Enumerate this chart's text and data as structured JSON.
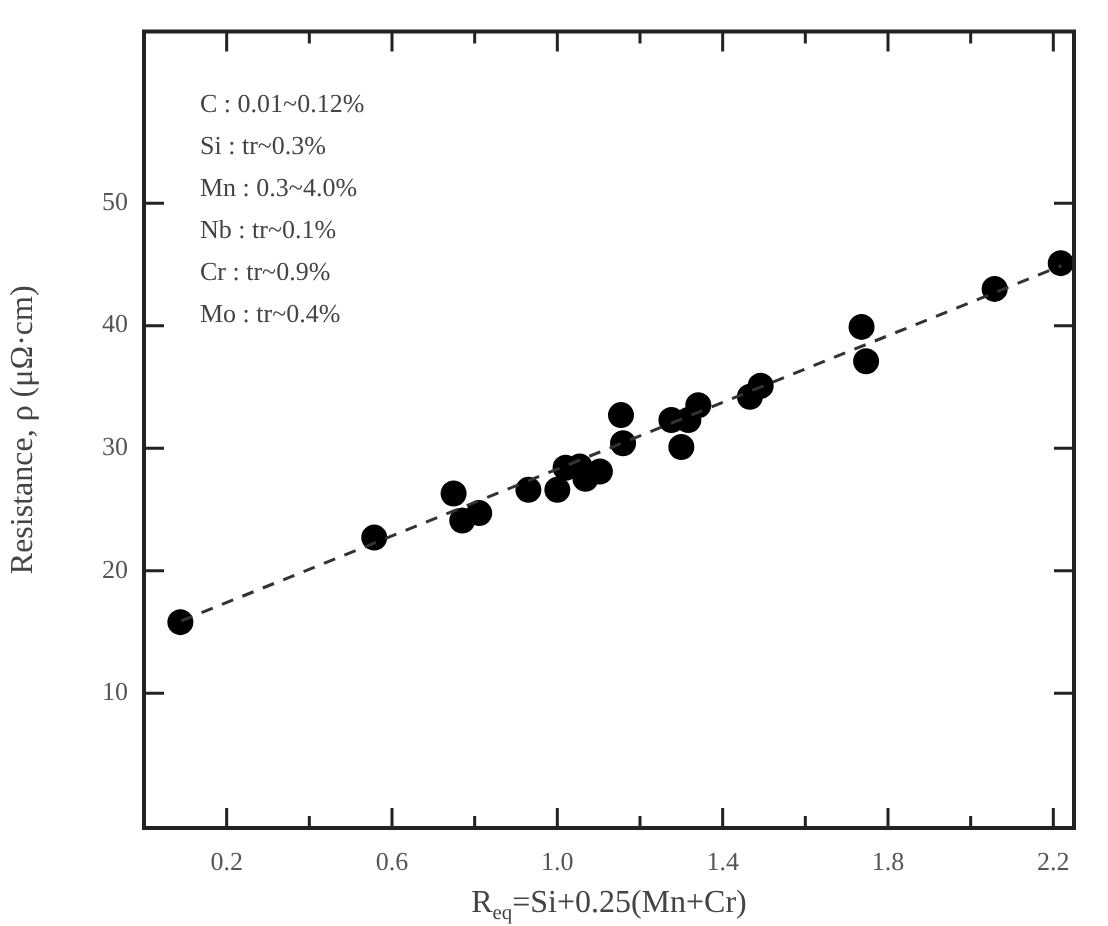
{
  "chart_data": {
    "type": "scatter",
    "xlabel": "R$_{eq}$=Si+0.25(Mn+Cr)",
    "ylabel": "Resistance, ρ (μΩ·cm)",
    "xlim": [
      0,
      2.25
    ],
    "ylim": [
      -1,
      64
    ],
    "xticks": [
      0.2,
      {
        "value": 0.4,
        "label": null
      },
      0.6,
      {
        "value": 0.8,
        "label": null
      },
      "1.0",
      {
        "value": 1.2,
        "label": null
      },
      1.4,
      {
        "value": 1.6,
        "label": null
      },
      1.8,
      {
        "value": 2.0,
        "label": null
      },
      2.2
    ],
    "yticks": [
      10,
      20,
      30,
      40,
      50
    ],
    "grid": false,
    "marker": "circle",
    "annotations": [
      "C : 0.01~0.12%",
      "Si : tr~0.3%",
      "Mn : 0.3~4.0%",
      "Nb : tr~0.1%",
      "Cr : tr~0.9%",
      "Mo : tr~0.4%"
    ],
    "series": [
      {
        "type": "scatter",
        "color": "#000000",
        "x": [
          0.088,
          0.557,
          0.749,
          0.77,
          0.811,
          0.93,
          1.0,
          1.02,
          1.054,
          1.068,
          1.103,
          1.154,
          1.159,
          1.276,
          1.3,
          1.317,
          1.341,
          1.466,
          1.492,
          1.736,
          1.747,
          2.058,
          2.218
        ],
        "values": [
          15.8,
          22.7,
          26.3,
          24.1,
          24.7,
          26.6,
          26.6,
          28.4,
          28.5,
          27.5,
          28.1,
          32.7,
          30.4,
          32.3,
          30.1,
          32.3,
          33.5,
          34.2,
          35.1,
          39.9,
          37.1,
          43.0,
          45.1
        ]
      },
      {
        "type": "line",
        "color": "#333333",
        "line_style": "dashed",
        "marker": "none",
        "x": [
          0.09,
          2.22
        ],
        "values": [
          15.9,
          44.9
        ]
      }
    ]
  }
}
